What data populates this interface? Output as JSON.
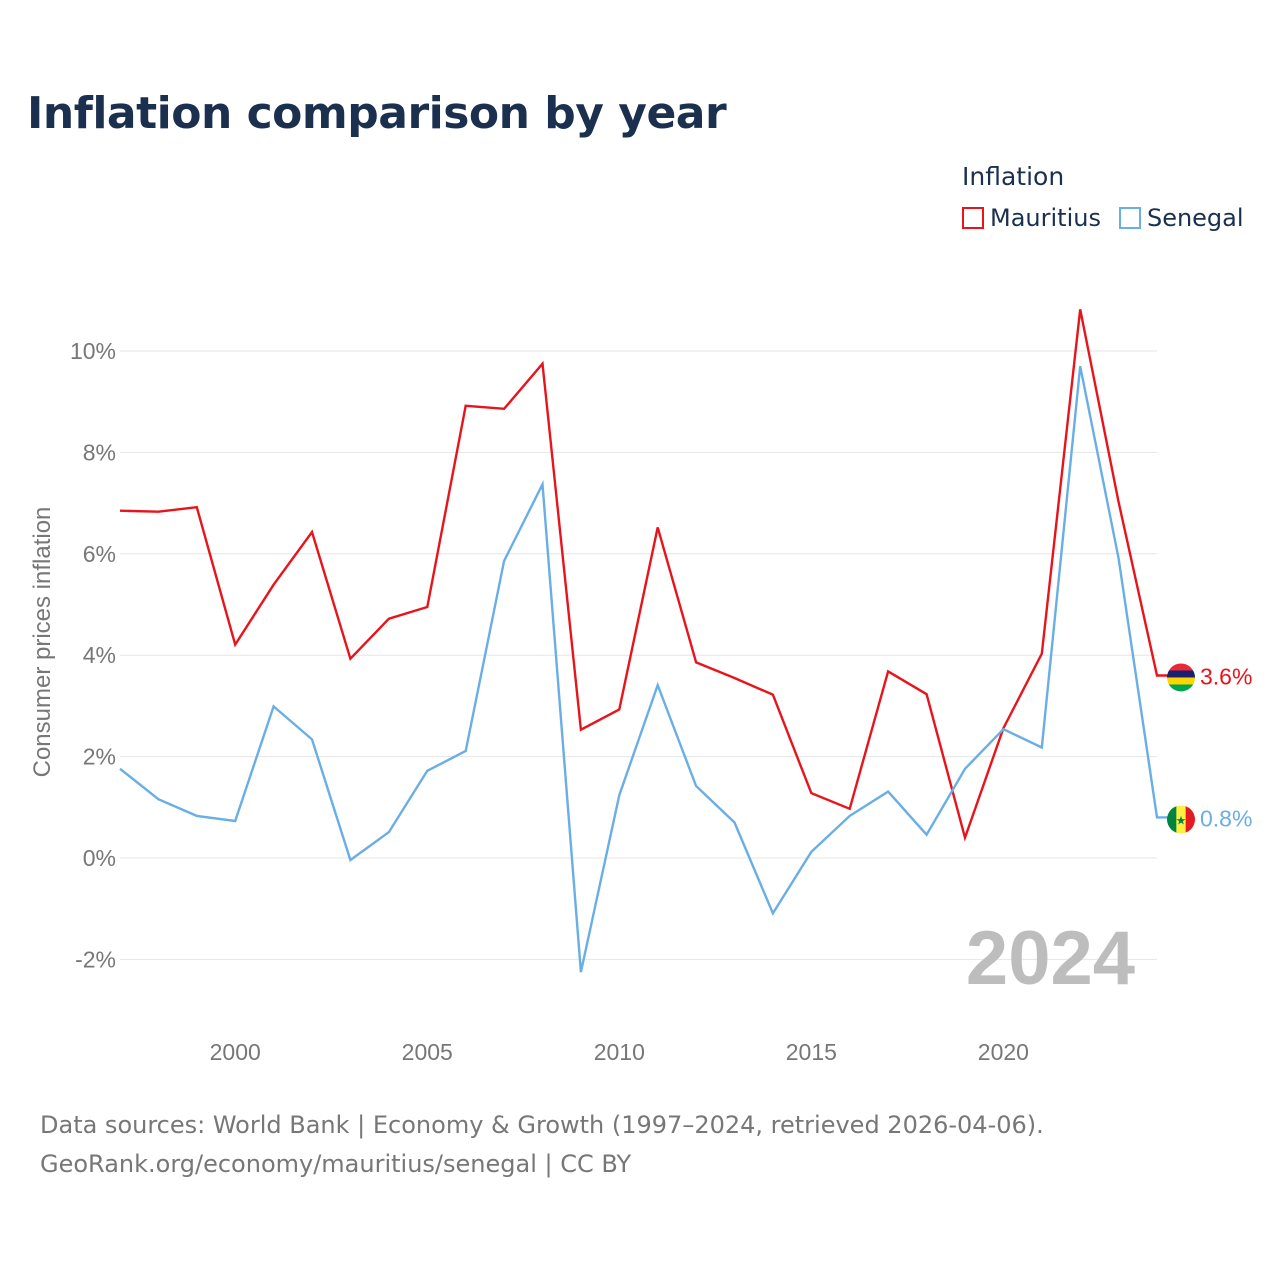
{
  "title": "Inflation comparison by year",
  "legend": {
    "heading": "Inflation",
    "items": [
      {
        "label": "Mauritius",
        "color": "#e8141b"
      },
      {
        "label": "Senegal",
        "color": "#6aaee6"
      }
    ]
  },
  "source": {
    "line1": "Data sources: World Bank | Economy & Growth (1997–2024, retrieved 2026-04-06).",
    "line2": "GeoRank.org/economy/mauritius/senegal | CC BY"
  },
  "chart_data": {
    "type": "line",
    "title": "Inflation comparison by year",
    "ylabel": "Consumer prices inflation",
    "xlabel": "",
    "year_watermark": "2024",
    "x": [
      1997,
      1998,
      1999,
      2000,
      2001,
      2002,
      2003,
      2004,
      2005,
      2006,
      2007,
      2008,
      2009,
      2010,
      2011,
      2012,
      2013,
      2014,
      2015,
      2016,
      2017,
      2018,
      2019,
      2020,
      2021,
      2022,
      2023,
      2024
    ],
    "xlim": [
      1997,
      2024
    ],
    "ylim": [
      -2.6,
      11
    ],
    "x_ticks": [
      2000,
      2005,
      2010,
      2015,
      2020
    ],
    "y_ticks": [
      -2,
      0,
      2,
      4,
      6,
      8,
      10
    ],
    "y_tick_labels": [
      "-2%",
      "0%",
      "2%",
      "4%",
      "6%",
      "8%",
      "10%"
    ],
    "series": [
      {
        "name": "Mauritius",
        "color": "#e8141b",
        "end_label": "3.6%",
        "flag": "mauritius",
        "values": [
          6.85,
          6.83,
          6.92,
          4.21,
          5.39,
          6.43,
          3.93,
          4.72,
          4.95,
          8.92,
          8.86,
          9.75,
          2.53,
          2.93,
          6.52,
          3.86,
          3.55,
          3.22,
          1.28,
          0.97,
          3.68,
          3.23,
          0.4,
          2.56,
          4.03,
          10.82,
          7.02,
          3.6
        ]
      },
      {
        "name": "Senegal",
        "color": "#6aaee6",
        "end_label": "0.8%",
        "flag": "senegal",
        "values": [
          1.76,
          1.16,
          0.83,
          0.73,
          2.99,
          2.34,
          -0.04,
          0.51,
          1.72,
          2.11,
          5.86,
          7.37,
          -2.25,
          1.24,
          3.41,
          1.42,
          0.7,
          -1.09,
          0.12,
          0.83,
          1.31,
          0.46,
          1.76,
          2.54,
          2.18,
          9.7,
          5.91,
          0.8
        ]
      }
    ]
  }
}
